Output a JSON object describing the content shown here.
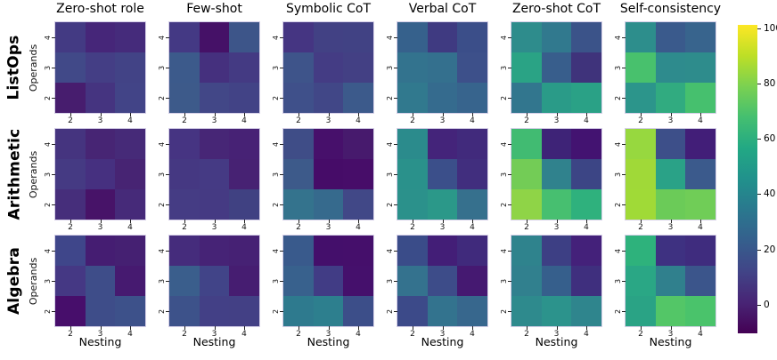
{
  "figure": {
    "background": "#ffffff",
    "text_color": "#000000"
  },
  "chart_data": {
    "type": "heatmap",
    "colormap": "viridis",
    "column_titles": [
      "Zero-shot role",
      "Few-shot",
      "Symbolic CoT",
      "Verbal CoT",
      "Zero-shot CoT",
      "Self-consistency"
    ],
    "row_titles": [
      "ListOps",
      "Arithmetic",
      "Algebra"
    ],
    "x_axis_label": "Nesting",
    "y_axis_label": "Operands",
    "x_tick_labels": [
      "2",
      "3",
      "4"
    ],
    "y_tick_labels": [
      "4",
      "3",
      "2"
    ],
    "colorbar_tick_labels": [
      "100",
      "80",
      "60",
      "40",
      "20",
      "0"
    ],
    "colorbar_gradient_top_to_bottom": [
      "#fde725",
      "#bddf26",
      "#7ad151",
      "#44bf70",
      "#22a884",
      "#21918c",
      "#2a788e",
      "#355f8d",
      "#414487",
      "#482475",
      "#440154"
    ],
    "panels": [
      {
        "task": "ListOps",
        "prompt": "Zero-shot role",
        "values": [
          [
            6,
            0,
            1
          ],
          [
            11,
            7,
            8
          ],
          [
            0,
            4,
            9
          ]
        ],
        "colors": [
          [
            "#433a83",
            "#462679",
            "#452b7b"
          ],
          [
            "#414988",
            "#443e85",
            "#424386"
          ],
          [
            "#471d6e",
            "#453480",
            "#424487"
          ]
        ]
      },
      {
        "task": "ListOps",
        "prompt": "Few-shot",
        "values": [
          [
            7,
            0,
            18
          ],
          [
            20,
            3,
            6
          ],
          [
            20,
            9,
            8
          ]
        ],
        "colors": [
          [
            "#443984",
            "#451167",
            "#3d5589"
          ],
          [
            "#3c5a8b",
            "#45307e",
            "#443a83"
          ],
          [
            "#3d5a8a",
            "#424787",
            "#424386"
          ]
        ]
      },
      {
        "task": "ListOps",
        "prompt": "Symbolic CoT",
        "values": [
          [
            5,
            8,
            9
          ],
          [
            15,
            7,
            8
          ],
          [
            13,
            10,
            20
          ]
        ],
        "colors": [
          [
            "#453582",
            "#424184",
            "#414284"
          ],
          [
            "#3e548a",
            "#443c84",
            "#434084"
          ],
          [
            "#3f508a",
            "#414787",
            "#3c5a8b"
          ]
        ]
      },
      {
        "task": "ListOps",
        "prompt": "Verbal CoT",
        "values": [
          [
            23,
            8,
            14
          ],
          [
            30,
            29,
            15
          ],
          [
            32,
            26,
            23
          ]
        ],
        "colors": [
          [
            "#36618c",
            "#3f3a81",
            "#3b4e89"
          ],
          [
            "#33738e",
            "#34708e",
            "#3d508a"
          ],
          [
            "#31798e",
            "#356b8e",
            "#37648d"
          ]
        ]
      },
      {
        "task": "ListOps",
        "prompt": "Zero-shot CoT",
        "values": [
          [
            39,
            31,
            17
          ],
          [
            51,
            20,
            4
          ],
          [
            28,
            47,
            50
          ]
        ],
        "colors": [
          [
            "#2e8c8c",
            "#31798e",
            "#3b5389"
          ],
          [
            "#2aa385",
            "#385e8c",
            "#3f337b"
          ],
          [
            "#32768e",
            "#2a9b88",
            "#2aa186"
          ]
        ]
      },
      {
        "task": "ListOps",
        "prompt": "Self-consistency",
        "values": [
          [
            40,
            19,
            22
          ],
          [
            63,
            39,
            39
          ],
          [
            43,
            53,
            62
          ]
        ],
        "colors": [
          [
            "#2d8e8c",
            "#3a5a8c",
            "#38648d"
          ],
          [
            "#48c16d",
            "#2e8b8d",
            "#2e8c8c"
          ],
          [
            "#2c958b",
            "#31ab80",
            "#46c06e"
          ]
        ]
      },
      {
        "task": "Arithmetic",
        "prompt": "Zero-shot role",
        "values": [
          [
            5,
            1,
            2
          ],
          [
            7,
            4,
            1
          ],
          [
            3,
            0,
            2
          ]
        ],
        "colors": [
          [
            "#45347f",
            "#472574",
            "#462a78"
          ],
          [
            "#453a83",
            "#463080",
            "#472473"
          ],
          [
            "#462e7b",
            "#471368",
            "#462a79"
          ]
        ]
      },
      {
        "task": "Arithmetic",
        "prompt": "Few-shot",
        "values": [
          [
            5,
            1,
            1
          ],
          [
            6,
            6,
            0
          ],
          [
            7,
            6,
            8
          ]
        ],
        "colors": [
          [
            "#463482",
            "#472676",
            "#472275"
          ],
          [
            "#453882",
            "#453a84",
            "#472273"
          ],
          [
            "#453c84",
            "#453a83",
            "#404182"
          ]
        ]
      },
      {
        "task": "Arithmetic",
        "prompt": "Symbolic CoT",
        "values": [
          [
            12,
            0,
            0
          ],
          [
            18,
            0,
            0
          ],
          [
            30,
            25,
            10
          ]
        ],
        "colors": [
          [
            "#3f4d87",
            "#47106b",
            "#471a6d"
          ],
          [
            "#3d5a8a",
            "#460c68",
            "#470d69"
          ],
          [
            "#34738d",
            "#366a8d",
            "#414887"
          ]
        ]
      },
      {
        "task": "Arithmetic",
        "prompt": "Verbal CoT",
        "values": [
          [
            39,
            0,
            2
          ],
          [
            41,
            15,
            3
          ],
          [
            41,
            45,
            27
          ]
        ],
        "colors": [
          [
            "#2b8b8c",
            "#44247a",
            "#412a7c"
          ],
          [
            "#2a918b",
            "#3b4f8a",
            "#412e7e"
          ],
          [
            "#2b918b",
            "#2b9889",
            "#36708d"
          ]
        ]
      },
      {
        "task": "Arithmetic",
        "prompt": "Zero-shot CoT",
        "values": [
          [
            61,
            0,
            0
          ],
          [
            71,
            35,
            12
          ],
          [
            76,
            62,
            55
          ]
        ],
        "colors": [
          [
            "#41bb72",
            "#3e2377",
            "#431371"
          ],
          [
            "#73cc56",
            "#30828d",
            "#3c4585"
          ],
          [
            "#8fd447",
            "#47bf70",
            "#2fb17d"
          ]
        ]
      },
      {
        "task": "Arithmetic",
        "prompt": "Self-consistency",
        "values": [
          [
            79,
            15,
            0
          ],
          [
            81,
            50,
            19
          ],
          [
            81,
            68,
            69
          ]
        ],
        "colors": [
          [
            "#97d83f",
            "#3d4f89",
            "#421e78"
          ],
          [
            "#a0d938",
            "#2aa287",
            "#3b5a8c"
          ],
          [
            "#a0da37",
            "#6bcb58",
            "#70cd57"
          ]
        ]
      },
      {
        "task": "Algebra",
        "prompt": "Zero-shot role",
        "values": [
          [
            10,
            0,
            0
          ],
          [
            6,
            12,
            0
          ],
          [
            0,
            12,
            14
          ]
        ],
        "colors": [
          [
            "#3f468a",
            "#451d72",
            "#452072"
          ],
          [
            "#453884",
            "#3e4d89",
            "#461a70"
          ],
          [
            "#470e6b",
            "#3e4d89",
            "#3d518a"
          ]
        ]
      },
      {
        "task": "Algebra",
        "prompt": "Few-shot",
        "values": [
          [
            3,
            0,
            0
          ],
          [
            21,
            9,
            0
          ],
          [
            14,
            8,
            8
          ]
        ],
        "colors": [
          [
            "#452c7c",
            "#462376",
            "#462174"
          ],
          [
            "#3a5e8c",
            "#414488",
            "#461d71"
          ],
          [
            "#3d528a",
            "#434086",
            "#434085"
          ]
        ]
      },
      {
        "task": "Algebra",
        "prompt": "Symbolic CoT",
        "values": [
          [
            19,
            0,
            0
          ],
          [
            22,
            7,
            0
          ],
          [
            33,
            35,
            13
          ]
        ],
        "colors": [
          [
            "#395a8c",
            "#440f6b",
            "#450f6b"
          ],
          [
            "#38618d",
            "#413c85",
            "#45106c"
          ],
          [
            "#2e7a8e",
            "#2d7f8e",
            "#3c4e89"
          ]
        ]
      },
      {
        "task": "Algebra",
        "prompt": "Verbal CoT",
        "values": [
          [
            13,
            0,
            2
          ],
          [
            30,
            13,
            0
          ],
          [
            13,
            30,
            24
          ]
        ],
        "colors": [
          [
            "#3a4c89",
            "#431e77",
            "#402a7c"
          ],
          [
            "#34728e",
            "#3d4c89",
            "#451971"
          ],
          [
            "#3c4a89",
            "#33738e",
            "#37678d"
          ]
        ]
      },
      {
        "task": "Algebra",
        "prompt": "Zero-shot CoT",
        "values": [
          [
            36,
            10,
            0
          ],
          [
            34,
            21,
            4
          ],
          [
            38,
            42,
            36
          ]
        ],
        "colors": [
          [
            "#2f838d",
            "#3d3f84",
            "#44217a"
          ],
          [
            "#31808e",
            "#365f8c",
            "#3f2f7e"
          ],
          [
            "#2e8a8d",
            "#2c938c",
            "#2f858d"
          ]
        ]
      },
      {
        "task": "Algebra",
        "prompt": "Self-consistency",
        "values": [
          [
            56,
            6,
            4
          ],
          [
            52,
            34,
            17
          ],
          [
            51,
            65,
            63
          ]
        ],
        "colors": [
          [
            "#2eb27c",
            "#3e3181",
            "#3f2c7e"
          ],
          [
            "#2aa785",
            "#30808d",
            "#3b558b"
          ],
          [
            "#2aa385",
            "#53c667",
            "#4ac36b"
          ]
        ]
      }
    ]
  }
}
